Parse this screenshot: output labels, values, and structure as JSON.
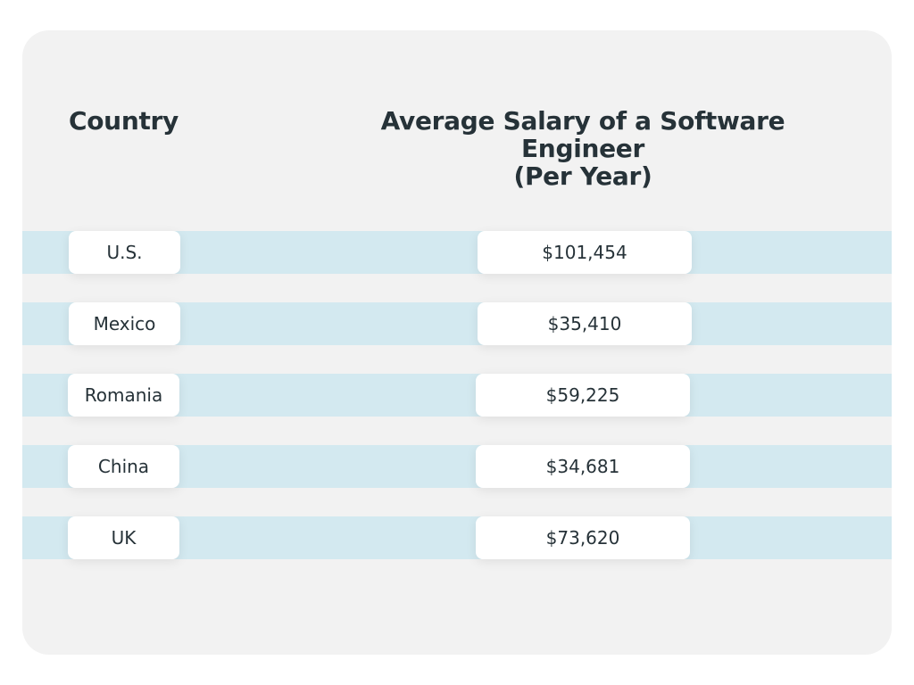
{
  "chart_data": {
    "type": "table",
    "columns": [
      "Country",
      "Average Salary of a Software Engineer (Per Year)"
    ],
    "rows": [
      {
        "country": "U.S.",
        "salary": "$101,454"
      },
      {
        "country": "Mexico",
        "salary": "$35,410"
      },
      {
        "country": "Romania",
        "salary": "$59,225"
      },
      {
        "country": "China",
        "salary": "$34,681"
      },
      {
        "country": "UK",
        "salary": "$73,620"
      }
    ],
    "values": [
      101454,
      35410,
      59225,
      34681,
      73620
    ]
  },
  "header": {
    "country": "Country",
    "salary_line1": "Average Salary of a Software Engineer",
    "salary_line2": "(Per Year)"
  },
  "colors": {
    "card_background": "#f2f2f2",
    "row_band": "#d3e9f0",
    "cell_background": "#ffffff",
    "text": "#263238"
  }
}
